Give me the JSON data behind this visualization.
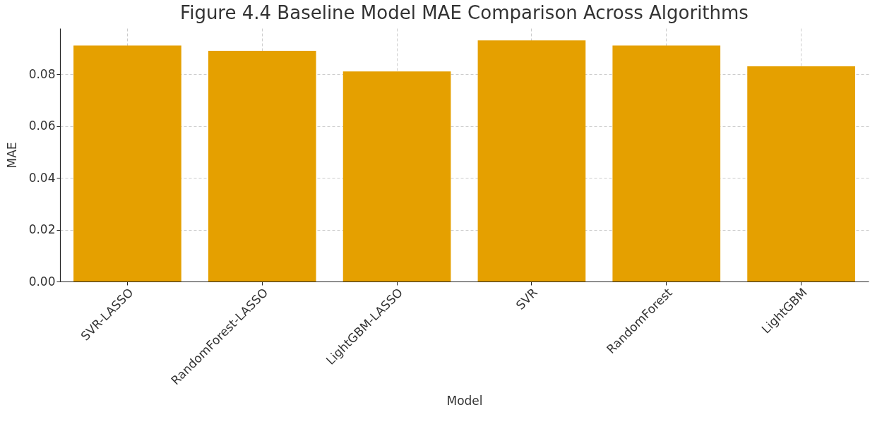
{
  "chart_data": {
    "type": "bar",
    "title": "Figure 4.4 Baseline Model MAE Comparison Across Algorithms",
    "xlabel": "Model",
    "ylabel": "MAE",
    "categories": [
      "SVR-LASSO",
      "RandomForest-LASSO",
      "LightGBM-LASSO",
      "SVR",
      "RandomForest",
      "LightGBM"
    ],
    "values": [
      0.091,
      0.089,
      0.081,
      0.093,
      0.091,
      0.083
    ],
    "color": "#e5a000",
    "ylim": [
      0,
      0.0977
    ],
    "yticks": [
      {
        "value": 0,
        "label": "0.00"
      },
      {
        "value": 0.02,
        "label": "0.02"
      },
      {
        "value": 0.04,
        "label": "0.04"
      },
      {
        "value": 0.06,
        "label": "0.06"
      },
      {
        "value": 0.08,
        "label": "0.08"
      }
    ],
    "grid": true
  }
}
